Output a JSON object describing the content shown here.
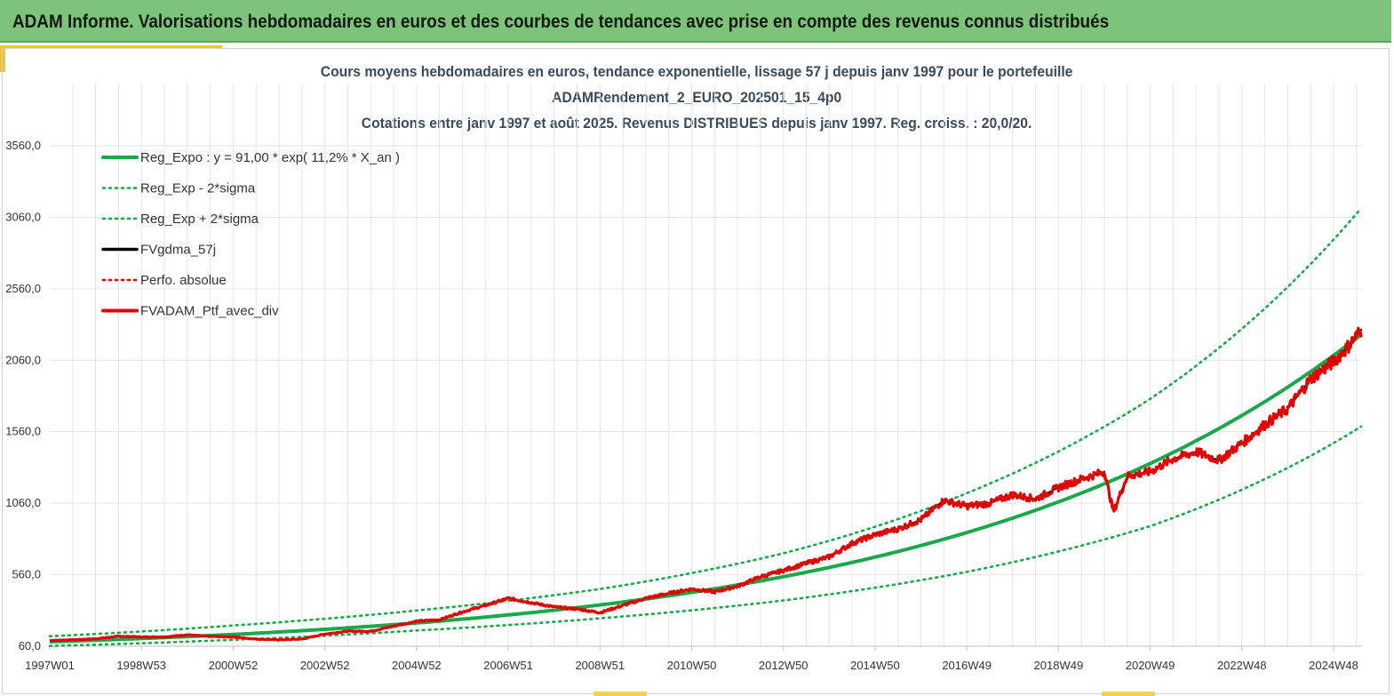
{
  "banner": {
    "title": "ADAM Informe. Valorisations hebdomadaires en euros et des courbes de tendances avec prise en compte des revenus connus distribués"
  },
  "colors": {
    "banner_bg": "#7dc47a",
    "accent": "#f5c51a",
    "reg_expo": "#1aa84a",
    "sigma": "#1aa84a",
    "fvgdma": "#000000",
    "perfo": "#e00000",
    "ptf": "#e00000"
  },
  "chart_data": {
    "type": "line",
    "title_lines": [
      "Cours moyens hebdomadaires  en euros, tendance exponentielle, lissage 57 j depuis janv 1997 pour le portefeuille",
      "ADAMRendement_2_EURO_202501_15_4p0",
      "Cotations  entre janv 1997 et août 2025. Revenus DISTRIBUES depuis janv 1997. Reg. croiss. : 20,0/20."
    ],
    "xlabel": "",
    "ylabel": "",
    "x_range": [
      1997.0,
      2025.62
    ],
    "ylim": [
      60,
      3560
    ],
    "y_ticks": [
      "60,0",
      "560,0",
      "1060,0",
      "1560,0",
      "2060,0",
      "2560,0",
      "3060,0",
      "3560,0"
    ],
    "x_ticks": [
      {
        "label": "1997W01",
        "x": 1997.0
      },
      {
        "label": "1998W53",
        "x": 1999.0
      },
      {
        "label": "2000W52",
        "x": 2001.0
      },
      {
        "label": "2002W52",
        "x": 2003.0
      },
      {
        "label": "2004W52",
        "x": 2005.0
      },
      {
        "label": "2006W51",
        "x": 2007.0
      },
      {
        "label": "2008W51",
        "x": 2009.0
      },
      {
        "label": "2010W50",
        "x": 2011.0
      },
      {
        "label": "2012W50",
        "x": 2013.0
      },
      {
        "label": "2014W50",
        "x": 2015.0
      },
      {
        "label": "2016W49",
        "x": 2017.0
      },
      {
        "label": "2018W49",
        "x": 2019.0
      },
      {
        "label": "2020W49",
        "x": 2021.0
      },
      {
        "label": "2022W48",
        "x": 2023.0
      },
      {
        "label": "2024W48",
        "x": 2025.0
      }
    ],
    "grid": true,
    "legend_position": "top-left",
    "regression": {
      "a": 91.0,
      "rate": 0.112,
      "x0": 1997.0
    },
    "series": [
      {
        "name": "Reg_Expo : y = 91,00 * exp( 11,2% *  X_an )",
        "style": "solid-thick",
        "color": "#1aa84a"
      },
      {
        "name": "Reg_Exp - 2*sigma",
        "style": "dotted",
        "color": "#1aa84a"
      },
      {
        "name": "Reg_Exp + 2*sigma",
        "style": "dotted",
        "color": "#1aa84a"
      },
      {
        "name": "FVgdma_57j",
        "style": "solid",
        "color": "#000000"
      },
      {
        "name": "Perfo. absolue",
        "style": "dotted",
        "color": "#e00000"
      },
      {
        "name": "FVADAM_Ptf_avec_div",
        "style": "solid-thick",
        "color": "#e00000"
      }
    ],
    "sigma_band": {
      "lower": {
        "x": [
          1997.0,
          2001.0,
          2005.0,
          2009.0,
          2013.0,
          2017.0,
          2021.0,
          2025.62
        ],
        "y": [
          62,
          105,
          170,
          255,
          380,
          580,
          900,
          1600
        ]
      },
      "upper": {
        "x": [
          1997.0,
          2001.0,
          2005.0,
          2009.0,
          2013.0,
          2017.0,
          2021.0,
          2025.62
        ],
        "y": [
          130,
          205,
          310,
          460,
          710,
          1130,
          1790,
          3130
        ]
      }
    },
    "ptf_points": {
      "x": [
        1997.0,
        1997.5,
        1998.0,
        1998.5,
        1999.0,
        1999.5,
        2000.0,
        2000.5,
        2001.0,
        2001.5,
        2002.0,
        2002.5,
        2003.0,
        2003.5,
        2004.0,
        2004.5,
        2005.0,
        2005.5,
        2006.0,
        2006.5,
        2007.0,
        2007.5,
        2008.0,
        2008.5,
        2009.0,
        2009.5,
        2010.0,
        2010.5,
        2011.0,
        2011.5,
        2012.0,
        2012.5,
        2013.0,
        2013.5,
        2014.0,
        2014.5,
        2015.0,
        2015.5,
        2016.0,
        2016.5,
        2017.0,
        2017.5,
        2018.0,
        2018.5,
        2019.0,
        2019.5,
        2020.0,
        2020.2,
        2020.5,
        2021.0,
        2021.5,
        2022.0,
        2022.5,
        2023.0,
        2023.5,
        2024.0,
        2024.5,
        2025.0,
        2025.3,
        2025.62
      ],
      "y": [
        100,
        105,
        112,
        130,
        125,
        125,
        140,
        128,
        125,
        110,
        105,
        110,
        145,
        165,
        165,
        200,
        235,
        245,
        300,
        345,
        395,
        365,
        335,
        320,
        295,
        345,
        395,
        430,
        460,
        440,
        480,
        545,
        590,
        640,
        685,
        780,
        840,
        880,
        945,
        1080,
        1040,
        1060,
        1120,
        1090,
        1170,
        1230,
        1280,
        1000,
        1250,
        1280,
        1370,
        1420,
        1360,
        1480,
        1610,
        1720,
        1930,
        2050,
        2150,
        2280
      ]
    }
  }
}
